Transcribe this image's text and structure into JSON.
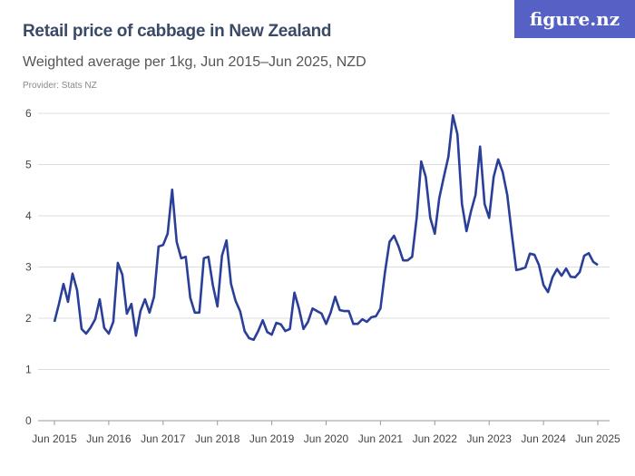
{
  "header": {
    "title": "Retail price of cabbage in New Zealand",
    "subtitle": "Weighted average per 1kg, Jun 2015–Jun 2025, NZD",
    "provider": "Provider: Stats NZ",
    "logo": "figure.nz"
  },
  "colors": {
    "line": "#2a3f98",
    "logo_bg": "#5561c5",
    "grid": "#dddddd"
  },
  "chart_data": {
    "type": "line",
    "title": "Retail price of cabbage in New Zealand",
    "subtitle": "Weighted average per 1kg, Jun 2015–Jun 2025, NZD",
    "xlabel": "",
    "ylabel": "",
    "ylim": [
      0,
      6
    ],
    "yticks": [
      "0",
      "1",
      "2",
      "3",
      "4",
      "5",
      "6"
    ],
    "xticks": [
      "Jun 2015",
      "Jun 2016",
      "Jun 2017",
      "Jun 2018",
      "Jun 2019",
      "Jun 2020",
      "Jun 2021",
      "Jun 2022",
      "Jun 2023",
      "Jun 2024",
      "Jun 2025"
    ],
    "grid": true,
    "x_start": "Jun 2015",
    "x_frequency": "monthly",
    "series": [
      {
        "values": [
          1.93,
          2.28,
          2.67,
          2.32,
          2.87,
          2.55,
          1.79,
          1.7,
          1.82,
          1.98,
          2.37,
          1.81,
          1.7,
          1.93,
          3.08,
          2.85,
          2.09,
          2.28,
          1.66,
          2.14,
          2.37,
          2.11,
          2.42,
          3.4,
          3.43,
          3.65,
          4.51,
          3.49,
          3.17,
          3.2,
          2.4,
          2.11,
          2.11,
          3.17,
          3.2,
          2.64,
          2.23,
          3.22,
          3.52,
          2.67,
          2.34,
          2.14,
          1.75,
          1.61,
          1.58,
          1.75,
          1.96,
          1.73,
          1.68,
          1.91,
          1.88,
          1.75,
          1.79,
          2.5,
          2.19,
          1.79,
          1.93,
          2.19,
          2.14,
          2.09,
          1.89,
          2.11,
          2.42,
          2.16,
          2.14,
          2.14,
          1.89,
          1.89,
          1.98,
          1.93,
          2.02,
          2.04,
          2.19,
          2.9,
          3.49,
          3.61,
          3.4,
          3.13,
          3.13,
          3.2,
          3.96,
          5.06,
          4.76,
          3.96,
          3.65,
          4.35,
          4.76,
          5.15,
          5.96,
          5.59,
          4.23,
          3.7,
          4.09,
          4.41,
          5.35,
          4.23,
          3.96,
          4.76,
          5.1,
          4.85,
          4.41,
          3.65,
          2.94,
          2.96,
          2.99,
          3.26,
          3.24,
          3.04,
          2.65,
          2.51,
          2.8,
          2.96,
          2.83,
          2.97,
          2.81,
          2.8,
          2.9,
          3.22,
          3.27,
          3.1,
          3.04
        ]
      }
    ]
  }
}
